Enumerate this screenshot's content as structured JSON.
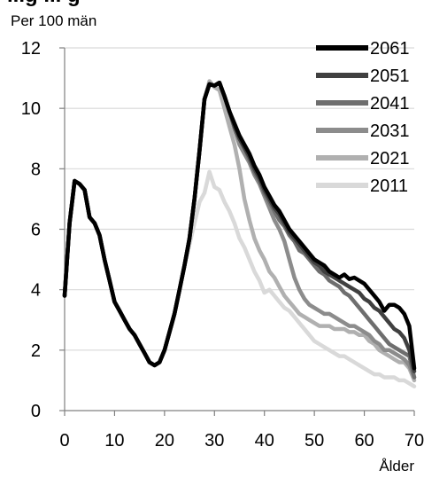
{
  "chart_data": {
    "type": "line",
    "title": "...g ... g",
    "ylabel": "Per 100 män",
    "xlabel": "Ålder",
    "xlim": [
      0,
      70
    ],
    "ylim": [
      0,
      12
    ],
    "xticks": [
      0,
      10,
      20,
      30,
      40,
      50,
      60,
      70
    ],
    "yticks": [
      0,
      2,
      4,
      6,
      8,
      10,
      12
    ],
    "grid": "horizontal",
    "legend_position": "top-right",
    "x": [
      0,
      1,
      2,
      3,
      4,
      5,
      6,
      7,
      8,
      9,
      10,
      11,
      12,
      13,
      14,
      15,
      16,
      17,
      18,
      19,
      20,
      21,
      22,
      23,
      24,
      25,
      26,
      27,
      28,
      29,
      30,
      31,
      32,
      33,
      34,
      35,
      36,
      37,
      38,
      39,
      40,
      41,
      42,
      43,
      44,
      45,
      46,
      47,
      48,
      49,
      50,
      51,
      52,
      53,
      54,
      55,
      56,
      57,
      58,
      59,
      60,
      61,
      62,
      63,
      64,
      65,
      66,
      67,
      68,
      69,
      70
    ],
    "series": [
      {
        "name": "2061",
        "color": "#000000",
        "width": 4.5,
        "values": [
          3.8,
          6.2,
          7.6,
          7.5,
          7.3,
          6.4,
          6.2,
          5.8,
          5.0,
          4.3,
          3.6,
          3.3,
          3.0,
          2.7,
          2.5,
          2.2,
          1.9,
          1.6,
          1.5,
          1.6,
          2.0,
          2.6,
          3.2,
          4.0,
          4.8,
          5.7,
          7.0,
          8.6,
          10.3,
          10.8,
          10.75,
          10.85,
          10.4,
          9.9,
          9.5,
          9.1,
          8.8,
          8.5,
          8.1,
          7.8,
          7.4,
          7.1,
          6.8,
          6.6,
          6.3,
          6.0,
          5.8,
          5.6,
          5.4,
          5.2,
          5.0,
          4.9,
          4.8,
          4.6,
          4.5,
          4.4,
          4.5,
          4.35,
          4.4,
          4.3,
          4.2,
          4.0,
          3.8,
          3.6,
          3.3,
          3.5,
          3.5,
          3.4,
          3.2,
          2.8,
          1.4
        ]
      },
      {
        "name": "2051",
        "color": "#404040",
        "width": 4.5,
        "values": [
          3.8,
          6.2,
          7.6,
          7.5,
          7.3,
          6.4,
          6.2,
          5.8,
          5.0,
          4.3,
          3.6,
          3.3,
          3.0,
          2.7,
          2.5,
          2.2,
          1.9,
          1.6,
          1.5,
          1.6,
          2.0,
          2.6,
          3.2,
          4.0,
          4.8,
          5.7,
          7.0,
          8.6,
          10.3,
          10.8,
          10.75,
          10.85,
          10.4,
          9.9,
          9.4,
          9.0,
          8.7,
          8.4,
          8.0,
          7.7,
          7.3,
          7.0,
          6.7,
          6.5,
          6.2,
          5.9,
          5.7,
          5.5,
          5.3,
          5.1,
          4.9,
          4.8,
          4.6,
          4.5,
          4.4,
          4.3,
          4.2,
          4.1,
          4.0,
          3.9,
          3.7,
          3.6,
          3.4,
          3.3,
          3.1,
          2.9,
          2.7,
          2.6,
          2.4,
          2.0,
          1.3
        ]
      },
      {
        "name": "2041",
        "color": "#6e6e6e",
        "width": 4.5,
        "values": [
          3.8,
          6.2,
          7.6,
          7.5,
          7.3,
          6.4,
          6.2,
          5.8,
          5.0,
          4.3,
          3.6,
          3.3,
          3.0,
          2.7,
          2.5,
          2.2,
          1.9,
          1.6,
          1.5,
          1.6,
          2.0,
          2.6,
          3.2,
          4.0,
          4.8,
          5.7,
          7.0,
          8.6,
          10.3,
          10.8,
          10.75,
          10.85,
          10.4,
          9.9,
          9.4,
          9.0,
          8.7,
          8.3,
          7.9,
          7.6,
          7.2,
          6.9,
          6.6,
          6.3,
          6.1,
          5.8,
          5.6,
          5.3,
          5.2,
          5.0,
          4.8,
          4.6,
          4.5,
          4.3,
          4.2,
          4.1,
          3.9,
          3.8,
          3.6,
          3.4,
          3.2,
          3.0,
          2.8,
          2.6,
          2.4,
          2.2,
          2.1,
          2.0,
          1.9,
          1.8,
          1.1
        ]
      },
      {
        "name": "2031",
        "color": "#8c8c8c",
        "width": 4.5,
        "values": [
          3.8,
          6.2,
          7.6,
          7.5,
          7.3,
          6.4,
          6.2,
          5.8,
          5.0,
          4.3,
          3.6,
          3.3,
          3.0,
          2.7,
          2.5,
          2.2,
          1.9,
          1.6,
          1.5,
          1.6,
          2.0,
          2.6,
          3.2,
          4.0,
          4.8,
          5.7,
          7.0,
          8.6,
          10.3,
          10.8,
          10.75,
          10.85,
          10.4,
          9.9,
          9.3,
          8.8,
          8.5,
          8.2,
          7.8,
          7.5,
          7.1,
          6.7,
          6.3,
          6.0,
          5.6,
          5.0,
          4.4,
          4.0,
          3.7,
          3.5,
          3.4,
          3.3,
          3.2,
          3.2,
          3.1,
          3.0,
          2.9,
          2.8,
          2.8,
          2.7,
          2.6,
          2.5,
          2.3,
          2.2,
          2.0,
          2.0,
          1.9,
          1.8,
          1.7,
          1.5,
          1.1
        ]
      },
      {
        "name": "2021",
        "color": "#b0b0b0",
        "width": 4.5,
        "values": [
          3.8,
          6.2,
          7.6,
          7.5,
          7.3,
          6.4,
          6.2,
          5.8,
          5.0,
          4.3,
          3.6,
          3.3,
          3.0,
          2.7,
          2.5,
          2.2,
          1.9,
          1.6,
          1.5,
          1.6,
          2.0,
          2.6,
          3.2,
          4.0,
          4.8,
          5.7,
          7.0,
          8.6,
          10.3,
          10.9,
          10.7,
          10.6,
          10.0,
          9.4,
          8.8,
          8.0,
          7.0,
          6.3,
          5.7,
          5.3,
          5.0,
          4.6,
          4.4,
          4.1,
          3.8,
          3.6,
          3.4,
          3.2,
          3.1,
          3.0,
          2.9,
          2.8,
          2.8,
          2.8,
          2.7,
          2.7,
          2.7,
          2.6,
          2.6,
          2.5,
          2.5,
          2.3,
          2.2,
          2.0,
          1.9,
          1.8,
          1.7,
          1.6,
          1.6,
          1.4,
          1.0
        ]
      },
      {
        "name": "2011",
        "color": "#d9d9d9",
        "width": 4.5,
        "values": [
          3.8,
          6.2,
          7.6,
          7.5,
          7.3,
          6.4,
          6.2,
          5.8,
          5.0,
          4.3,
          3.6,
          3.3,
          3.0,
          2.7,
          2.5,
          2.2,
          1.9,
          1.6,
          1.5,
          1.6,
          2.0,
          2.6,
          3.2,
          4.0,
          4.8,
          5.5,
          6.2,
          6.9,
          7.2,
          7.9,
          7.4,
          7.3,
          6.9,
          6.6,
          6.2,
          5.7,
          5.4,
          5.0,
          4.6,
          4.3,
          3.9,
          4.0,
          3.8,
          3.6,
          3.4,
          3.3,
          3.1,
          2.9,
          2.7,
          2.5,
          2.3,
          2.2,
          2.1,
          2.0,
          1.9,
          1.8,
          1.8,
          1.7,
          1.6,
          1.5,
          1.4,
          1.3,
          1.2,
          1.2,
          1.1,
          1.1,
          1.1,
          1.0,
          1.0,
          0.9,
          0.8
        ]
      }
    ]
  }
}
